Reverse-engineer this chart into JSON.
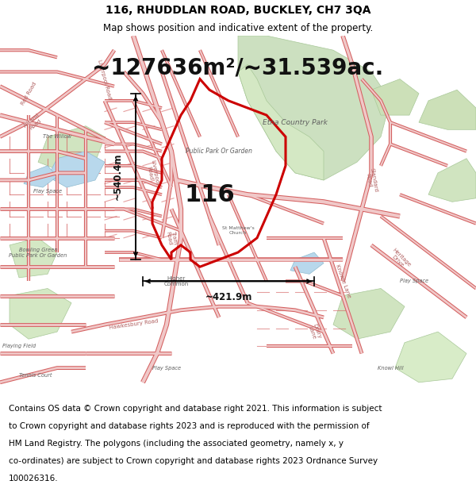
{
  "title": "116, RHUDDLAN ROAD, BUCKLEY, CH7 3QA",
  "subtitle": "Map shows position and indicative extent of the property.",
  "area_text": "~127636m²/~31.539ac.",
  "label_116": "116",
  "dim_vertical": "~540.4m",
  "dim_horizontal": "~421.9m",
  "footer": "Contains OS data © Crown copyright and database right 2021. This information is subject to Crown copyright and database rights 2023 and is reproduced with the permission of HM Land Registry. The polygons (including the associated geometry, namely x, y co-ordinates) are subject to Crown copyright and database rights 2023 Ordnance Survey 100026316.",
  "map_bg": "#f8f5f0",
  "road_color": "#f0c8c8",
  "road_stroke": "#d46060",
  "green_area": "#d8e8d0",
  "green_stroke": "#b0c8a0",
  "prop_stroke": "#cc0000",
  "water_color": "#b8d8ec",
  "title_fontsize": 10,
  "subtitle_fontsize": 8.5,
  "area_fontsize": 20,
  "label_fontsize": 22,
  "footer_fontsize": 7.5,
  "map_label_fontsize": 6.5,
  "road_label_fontsize": 5.0
}
